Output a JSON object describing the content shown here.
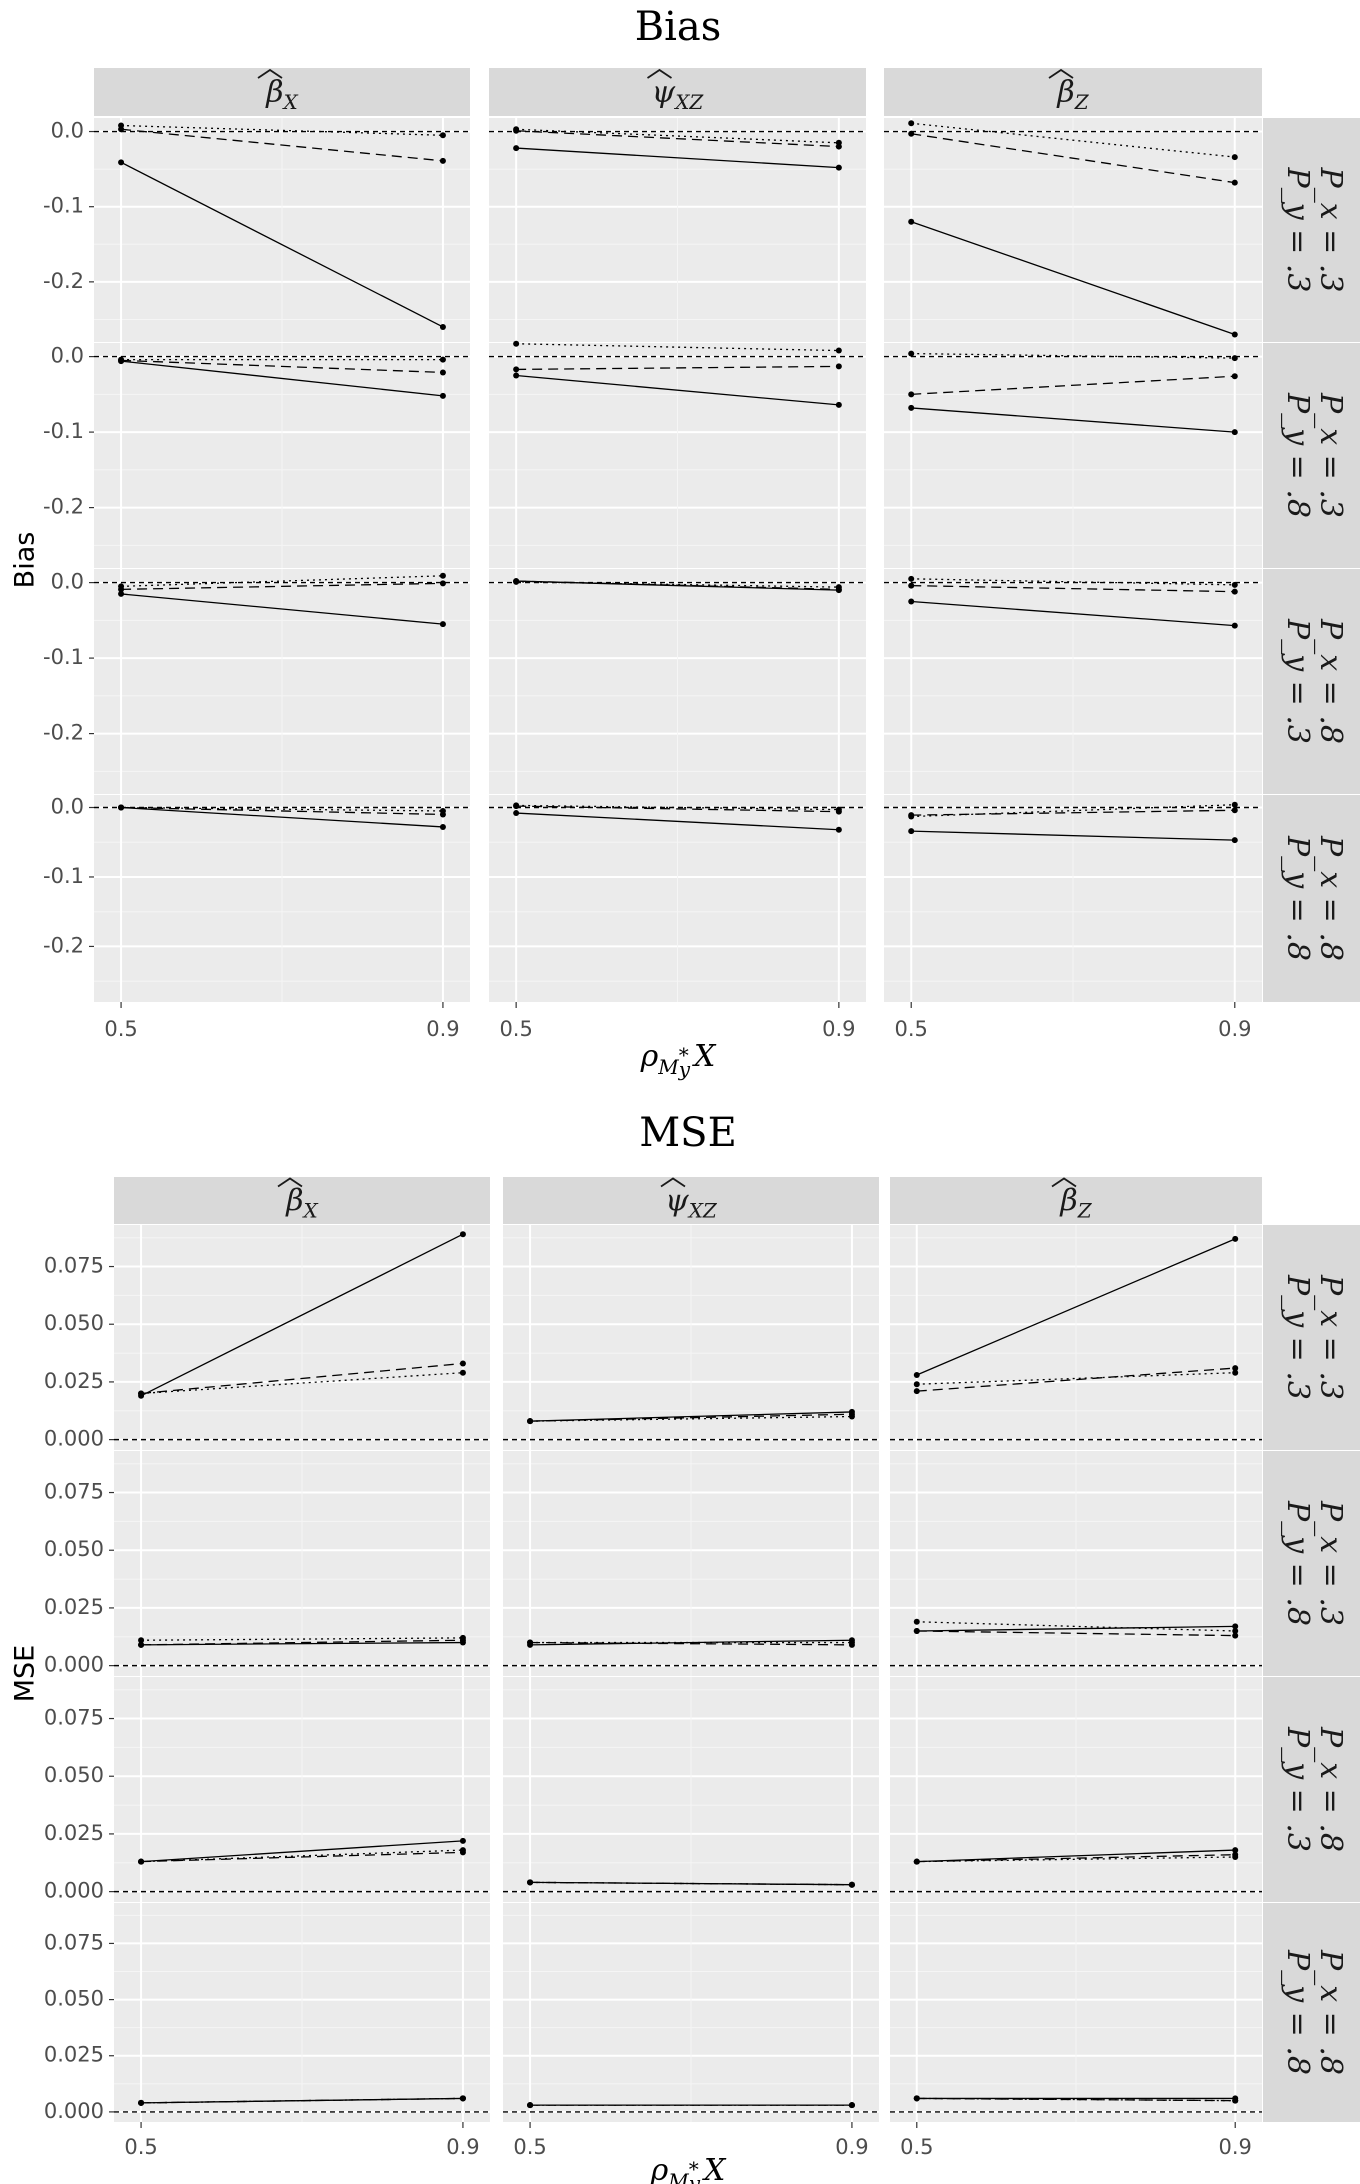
{
  "chart_data": [
    {
      "type": "line",
      "title": "Bias",
      "ylabel": "Bias",
      "xlabel": "ρ_{M*_y X}",
      "x": [
        0.5,
        0.9
      ],
      "x_ticks": [
        "0.5",
        "0.9"
      ],
      "ylim": [
        -0.28,
        0.018
      ],
      "y_ticks": [
        0.0,
        -0.1,
        -0.2
      ],
      "y_tick_labels": [
        "0.0",
        "-0.1",
        "-0.2"
      ],
      "reference_line": 0.0,
      "grid": true,
      "columns": [
        {
          "symbol": "β",
          "sub": "X"
        },
        {
          "symbol": "ψ",
          "sub": "XZ"
        },
        {
          "symbol": "β",
          "sub": "Z"
        }
      ],
      "rows": [
        {
          "px": "P_x = .3",
          "py": "P_y = .3"
        },
        {
          "px": "P_x = .3",
          "py": "P_y = .8"
        },
        {
          "px": "P_x = .8",
          "py": "P_y = .3"
        },
        {
          "px": "P_x = .8",
          "py": "P_y = .8"
        }
      ],
      "linetypes": [
        "solid",
        "dashed",
        "dotted"
      ],
      "panels": [
        [
          {
            "solid": [
              -0.041,
              -0.26
            ],
            "dashed": [
              0.003,
              -0.039
            ],
            "dotted": [
              0.008,
              -0.005
            ]
          },
          {
            "solid": [
              -0.022,
              -0.048
            ],
            "dashed": [
              0.001,
              -0.02
            ],
            "dotted": [
              0.003,
              -0.015
            ]
          },
          {
            "solid": [
              -0.12,
              -0.27
            ],
            "dashed": [
              -0.003,
              -0.068
            ],
            "dotted": [
              0.011,
              -0.034
            ]
          }
        ],
        [
          {
            "solid": [
              -0.006,
              -0.052
            ],
            "dashed": [
              -0.005,
              -0.021
            ],
            "dotted": [
              -0.004,
              -0.004
            ]
          },
          {
            "solid": [
              -0.025,
              -0.064
            ],
            "dashed": [
              -0.017,
              -0.013
            ],
            "dotted": [
              0.017,
              0.008
            ]
          },
          {
            "solid": [
              -0.068,
              -0.1
            ],
            "dashed": [
              -0.05,
              -0.026
            ],
            "dotted": [
              0.004,
              -0.002
            ]
          }
        ],
        [
          {
            "solid": [
              -0.015,
              -0.055
            ],
            "dashed": [
              -0.009,
              -0.001
            ],
            "dotted": [
              -0.005,
              0.009
            ]
          },
          {
            "solid": [
              0.002,
              -0.01
            ],
            "dashed": [
              0.002,
              -0.009
            ],
            "dotted": [
              0.001,
              -0.006
            ]
          },
          {
            "solid": [
              -0.025,
              -0.057
            ],
            "dashed": [
              -0.004,
              -0.012
            ],
            "dotted": [
              0.005,
              -0.003
            ]
          }
        ],
        [
          {
            "solid": [
              0.0,
              -0.028
            ],
            "dashed": [
              0.0,
              -0.01
            ],
            "dotted": [
              0.0,
              -0.005
            ]
          },
          {
            "solid": [
              -0.008,
              -0.032
            ],
            "dashed": [
              0.002,
              -0.006
            ],
            "dotted": [
              0.003,
              -0.003
            ]
          },
          {
            "solid": [
              -0.034,
              -0.047
            ],
            "dashed": [
              -0.011,
              -0.004
            ],
            "dotted": [
              -0.013,
              0.004
            ]
          }
        ]
      ]
    },
    {
      "type": "line",
      "title": "MSE",
      "ylabel": "MSE",
      "xlabel": "ρ_{M*_y X}",
      "x": [
        0.5,
        0.9
      ],
      "x_ticks": [
        "0.5",
        "0.9"
      ],
      "ylim": [
        -0.0045,
        0.093
      ],
      "y_ticks": [
        0.075,
        0.05,
        0.025,
        0.0
      ],
      "y_tick_labels": [
        "0.075",
        "0.050",
        "0.025",
        "0.000"
      ],
      "reference_line": 0.0,
      "grid": true,
      "columns": [
        {
          "symbol": "β",
          "sub": "X"
        },
        {
          "symbol": "ψ",
          "sub": "XZ"
        },
        {
          "symbol": "β",
          "sub": "Z"
        }
      ],
      "rows": [
        {
          "px": "P_x = .3",
          "py": "P_y = .3"
        },
        {
          "px": "P_x = .3",
          "py": "P_y = .8"
        },
        {
          "px": "P_x = .8",
          "py": "P_y = .3"
        },
        {
          "px": "P_x = .8",
          "py": "P_y = .8"
        }
      ],
      "linetypes": [
        "solid",
        "dashed",
        "dotted"
      ],
      "panels": [
        [
          {
            "solid": [
              0.019,
              0.089
            ],
            "dashed": [
              0.02,
              0.033
            ],
            "dotted": [
              0.02,
              0.029
            ]
          },
          {
            "solid": [
              0.008,
              0.012
            ],
            "dashed": [
              0.008,
              0.011
            ],
            "dotted": [
              0.008,
              0.01
            ]
          },
          {
            "solid": [
              0.028,
              0.087
            ],
            "dashed": [
              0.021,
              0.031
            ],
            "dotted": [
              0.024,
              0.029
            ]
          }
        ],
        [
          {
            "solid": [
              0.009,
              0.01
            ],
            "dashed": [
              0.009,
              0.011
            ],
            "dotted": [
              0.011,
              0.012
            ]
          },
          {
            "solid": [
              0.009,
              0.011
            ],
            "dashed": [
              0.01,
              0.009
            ],
            "dotted": [
              0.01,
              0.01
            ]
          },
          {
            "solid": [
              0.015,
              0.017
            ],
            "dashed": [
              0.015,
              0.013
            ],
            "dotted": [
              0.019,
              0.015
            ]
          }
        ],
        [
          {
            "solid": [
              0.013,
              0.022
            ],
            "dashed": [
              0.013,
              0.017
            ],
            "dotted": [
              0.013,
              0.018
            ]
          },
          {
            "solid": [
              0.004,
              0.003
            ],
            "dashed": [
              0.004,
              0.003
            ],
            "dotted": [
              0.004,
              0.003
            ]
          },
          {
            "solid": [
              0.013,
              0.018
            ],
            "dashed": [
              0.013,
              0.016
            ],
            "dotted": [
              0.013,
              0.015
            ]
          }
        ],
        [
          {
            "solid": [
              0.004,
              0.006
            ],
            "dashed": [
              0.004,
              0.006
            ],
            "dotted": [
              0.004,
              0.006
            ]
          },
          {
            "solid": [
              0.003,
              0.003
            ],
            "dashed": [
              0.003,
              0.003
            ],
            "dotted": [
              0.003,
              0.003
            ]
          },
          {
            "solid": [
              0.006,
              0.006
            ],
            "dashed": [
              0.006,
              0.005
            ],
            "dotted": [
              0.006,
              0.005
            ]
          }
        ]
      ]
    }
  ]
}
